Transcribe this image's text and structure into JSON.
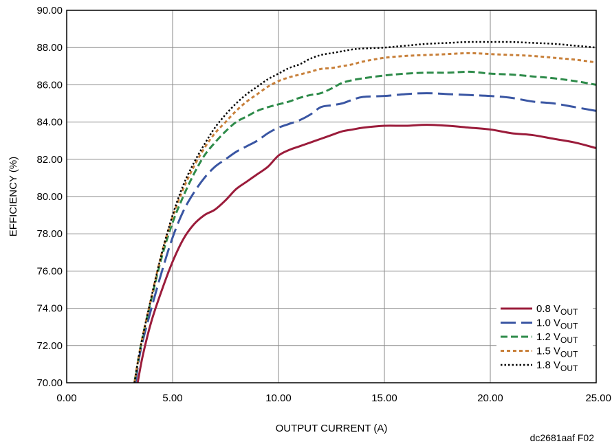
{
  "chart_data": {
    "type": "line",
    "title": "",
    "xlabel": "OUTPUT CURRENT (A)",
    "ylabel": "EFFICIENCY (%)",
    "xlim": [
      0,
      25
    ],
    "ylim": [
      70,
      90
    ],
    "xticks": [
      "0.00",
      "5.00",
      "10.00",
      "15.00",
      "20.00",
      "25.00"
    ],
    "yticks": [
      "70.00",
      "72.00",
      "74.00",
      "76.00",
      "78.00",
      "80.00",
      "82.00",
      "84.00",
      "86.00",
      "88.00",
      "90.00"
    ],
    "grid": true,
    "legend_position": "bottom-right",
    "figure_code": "dc2681aaf F02",
    "series": [
      {
        "name": "0.8 V",
        "name_sub": "OUT",
        "color": "#9b1c3b",
        "style": "solid",
        "x": [
          3.35,
          3.6,
          4,
          4.5,
          5,
          5.5,
          6,
          6.5,
          7,
          7.5,
          8,
          8.5,
          9,
          9.5,
          10,
          10.5,
          11,
          11.5,
          12,
          12.5,
          13,
          13.5,
          14,
          15,
          16,
          17,
          18,
          19,
          20,
          21,
          22,
          23,
          24,
          25
        ],
        "y": [
          70.0,
          71.5,
          73.3,
          75.0,
          76.5,
          77.7,
          78.5,
          79.0,
          79.3,
          79.8,
          80.4,
          80.8,
          81.2,
          81.6,
          82.2,
          82.5,
          82.7,
          82.9,
          83.1,
          83.3,
          83.5,
          83.6,
          83.7,
          83.8,
          83.8,
          83.85,
          83.8,
          83.7,
          83.6,
          83.4,
          83.3,
          83.1,
          82.9,
          82.6
        ]
      },
      {
        "name": "1.0 V",
        "name_sub": "OUT",
        "color": "#3a56a3",
        "style": "longdash",
        "x": [
          3.25,
          3.5,
          4,
          4.5,
          5,
          5.5,
          6,
          6.5,
          7,
          7.5,
          8,
          8.5,
          9,
          9.5,
          10,
          10.5,
          11,
          11.5,
          12,
          12.5,
          13,
          13.5,
          14,
          15,
          16,
          17,
          18,
          19,
          20,
          21,
          22,
          23,
          24,
          25
        ],
        "y": [
          70.0,
          71.8,
          74.0,
          76.0,
          77.8,
          79.2,
          80.2,
          81.0,
          81.6,
          82.0,
          82.4,
          82.7,
          83.0,
          83.4,
          83.7,
          83.9,
          84.1,
          84.4,
          84.8,
          84.9,
          85.0,
          85.2,
          85.35,
          85.4,
          85.5,
          85.55,
          85.5,
          85.45,
          85.4,
          85.3,
          85.1,
          85.0,
          84.8,
          84.6
        ]
      },
      {
        "name": "1.2 V",
        "name_sub": "OUT",
        "color": "#2e8b4a",
        "style": "dash",
        "x": [
          3.2,
          3.5,
          4,
          4.5,
          5,
          5.5,
          6,
          6.5,
          7,
          7.5,
          8,
          8.5,
          9,
          9.5,
          10,
          10.5,
          11,
          11.5,
          12,
          12.5,
          13,
          13.5,
          14,
          15,
          16,
          17,
          18,
          19,
          20,
          21,
          22,
          23,
          24,
          25
        ],
        "y": [
          70.0,
          72.0,
          74.5,
          76.8,
          78.6,
          80.0,
          81.2,
          82.2,
          82.9,
          83.5,
          84.0,
          84.3,
          84.6,
          84.8,
          84.95,
          85.1,
          85.3,
          85.45,
          85.55,
          85.8,
          86.1,
          86.25,
          86.35,
          86.5,
          86.6,
          86.65,
          86.65,
          86.7,
          86.6,
          86.55,
          86.45,
          86.35,
          86.2,
          86.0
        ]
      },
      {
        "name": "1.5 V",
        "name_sub": "OUT",
        "color": "#c8803a",
        "style": "dot",
        "x": [
          3.2,
          3.5,
          4,
          4.5,
          5,
          5.5,
          6,
          6.5,
          7,
          7.5,
          8,
          8.5,
          9,
          9.5,
          10,
          10.5,
          11,
          11.5,
          12,
          12.5,
          13,
          13.5,
          14,
          15,
          16,
          17,
          18,
          19,
          20,
          21,
          22,
          23,
          24,
          25
        ],
        "y": [
          70.0,
          72.0,
          74.6,
          77.0,
          78.9,
          80.4,
          81.6,
          82.6,
          83.4,
          84.0,
          84.6,
          85.1,
          85.5,
          85.9,
          86.2,
          86.4,
          86.55,
          86.7,
          86.85,
          86.9,
          87.0,
          87.1,
          87.25,
          87.45,
          87.55,
          87.6,
          87.65,
          87.7,
          87.65,
          87.6,
          87.55,
          87.45,
          87.35,
          87.2
        ]
      },
      {
        "name": "1.8 V",
        "name_sub": "OUT",
        "color": "#000000",
        "style": "finedot",
        "x": [
          3.2,
          3.5,
          4,
          4.5,
          5,
          5.5,
          6,
          6.5,
          7,
          7.5,
          8,
          8.5,
          9,
          9.5,
          10,
          10.5,
          11,
          11.5,
          12,
          12.5,
          13,
          13.5,
          14,
          15,
          16,
          17,
          18,
          19,
          20,
          21,
          22,
          23,
          24,
          25
        ],
        "y": [
          70.0,
          72.0,
          74.6,
          77.0,
          79.0,
          80.6,
          81.8,
          82.8,
          83.7,
          84.4,
          85.0,
          85.5,
          85.9,
          86.3,
          86.6,
          86.9,
          87.1,
          87.4,
          87.6,
          87.7,
          87.8,
          87.9,
          87.95,
          88.0,
          88.1,
          88.2,
          88.25,
          88.3,
          88.3,
          88.3,
          88.25,
          88.2,
          88.1,
          88.0
        ]
      }
    ]
  }
}
